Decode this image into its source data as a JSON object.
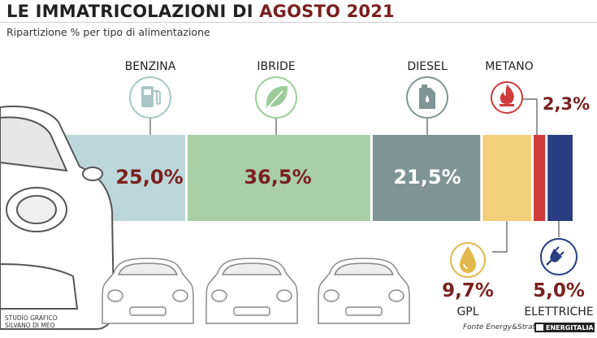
{
  "header": {
    "title_part1": "LE IMMATRICOLAZIONI DI ",
    "title_part2": "AGOSTO 2021",
    "subtitle": "Ripartizione % per tipo di alimentazione"
  },
  "footer": {
    "credit_line1": "STUDIO GRAFICO",
    "credit_line2": "SILVANO DI MEO",
    "source": "Fonte Energy&Strategy",
    "brand": "ENERGITALIA"
  },
  "colors": {
    "benzina": "#bcd7d9",
    "ibride": "#a8cfa6",
    "diesel": "#7f9494",
    "gpl": "#f4cf7a",
    "metano": "#cf3b3b",
    "elettriche": "#2a3f82",
    "value_dark": "#7a2020",
    "icon_border": "#a9c6c6"
  },
  "chart_data": {
    "type": "bar",
    "orientation": "horizontal-stacked",
    "title": "LE IMMATRICOLAZIONI DI AGOSTO 2021",
    "subtitle": "Ripartizione % per tipo di alimentazione",
    "unit": "%",
    "categories": [
      "BENZINA",
      "IBRIDE",
      "DIESEL",
      "GPL",
      "METANO",
      "ELETTRICHE"
    ],
    "values": [
      25.0,
      36.5,
      21.5,
      9.7,
      2.3,
      5.0
    ],
    "value_labels": [
      "25,0%",
      "36,5%",
      "21,5%",
      "9,7%",
      "2,3%",
      "5,0%"
    ],
    "icons": [
      "fuel-pump-icon",
      "leaf-icon",
      "fuel-can-icon",
      "droplet-icon",
      "flame-icon",
      "plug-icon"
    ]
  }
}
